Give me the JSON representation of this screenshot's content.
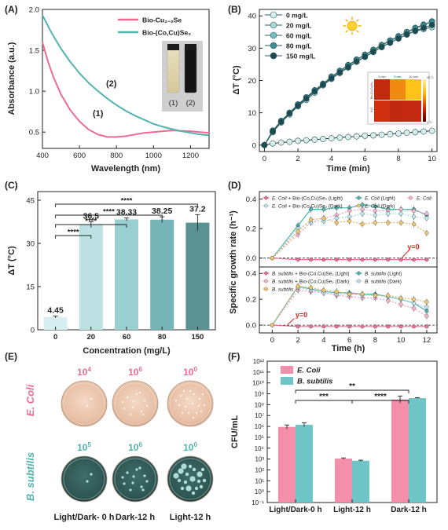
{
  "panel_labels": [
    "(A)",
    "(B)",
    "(C)",
    "(D)",
    "(E)",
    "(F)"
  ],
  "colors": {
    "pink": "#ee6a91",
    "teal": "#4fb3b0",
    "lightpink": "#f6b8cb",
    "lightteal": "#bde3e4",
    "dark": "#1c4a50",
    "F_pink": "#f48fab",
    "F_teal": "#6fc5c5"
  },
  "panel_A": {
    "ylabel": "Absorbance (a.u.)",
    "xlabel": "Wavelength (nm)",
    "xticks": [
      "400",
      "600",
      "800",
      "1000",
      "1200"
    ],
    "yticks": [
      "0.5",
      "1.0",
      "1.5",
      "2.0"
    ],
    "legend": [
      "Bio-Cu₂₋ₓSe",
      "Bio-(Co,Cu)Se₂"
    ],
    "annot": [
      "(1)",
      "(2)"
    ],
    "vial_labels": [
      "(1)",
      "(2)"
    ]
  },
  "panel_B": {
    "ylabel": "ΔT (°C)",
    "xlabel": "Time (min)",
    "xticks": [
      "0",
      "2",
      "4",
      "6",
      "8",
      "10"
    ],
    "yticks": [
      "0",
      "10",
      "20",
      "30",
      "40"
    ],
    "legend": [
      "0 mg/L",
      "20 mg/L",
      "60 mg/L",
      "80 mg/L",
      "150 mg/L"
    ],
    "inset_cols": [
      "0 min",
      "5 min",
      "10 min"
    ],
    "inset_rows": [
      "Bio-(Co,Cu)Se₂",
      "H₂O"
    ],
    "inset_scale": [
      "45 °C",
      "0 °C"
    ]
  },
  "panel_C": {
    "ylabel": "ΔT (°C)",
    "xlabel": "Concentration (mg/L)",
    "yticks": [
      "0",
      "15",
      "30",
      "45"
    ],
    "sig": [
      "****",
      "****",
      "****",
      "****"
    ]
  },
  "panel_D": {
    "ylabel": "Specific growth rate (h⁻¹)",
    "xlabel": "Time (h)",
    "xticks": [
      "0",
      "2",
      "4",
      "6",
      "8",
      "10",
      "12"
    ],
    "yticks_top": [
      "0.0",
      "0.2",
      "0.4"
    ],
    "yticks_bot": [
      "0.0",
      "0.2",
      "0.4"
    ],
    "y0": "y=0",
    "legend_top": [
      [
        "E. Coli",
        " + Bio-(Co,Cu)Se₂ (Light)"
      ],
      [
        "E. Coli",
        " (Light)"
      ],
      [
        "E. Coli",
        ""
      ],
      [
        "E. Coli",
        " + Bio-(Co,Cu)Se₂ (Dark)"
      ],
      [
        "E. Coli",
        " (Dark)"
      ]
    ],
    "legend_bot": [
      [
        "B. subtilis",
        " + Bio-(Co,Cu)Se₂ (Light)"
      ],
      [
        "B. subtilis",
        " (Light)"
      ],
      [
        "B. subtilis",
        " + Bio-(Co,Cu)Se₂ (Dark)"
      ],
      [
        "B. subtilis",
        " (Dark)"
      ],
      [
        "B. subtilis",
        ""
      ]
    ]
  },
  "panel_E": {
    "row_labels": [
      "E. Coli",
      "B. subtilis"
    ],
    "ecoli_dil": [
      "10",
      "10",
      "10"
    ],
    "ecoli_exp": [
      "4",
      "6",
      "0"
    ],
    "bsub_dil": [
      "10",
      "10",
      "10"
    ],
    "bsub_exp": [
      "5",
      "6",
      "0"
    ],
    "col_labels": [
      "Light/Dark- 0 h",
      "Dark-12 h",
      "Light-12 h"
    ]
  },
  "panel_F": {
    "ylabel": "CFU/mL",
    "yticks": [
      "10⁻¹",
      "10⁰",
      "10¹",
      "10²",
      "10³",
      "10⁴",
      "10⁵",
      "10⁶",
      "10⁷",
      "10⁸",
      "10⁹",
      "10¹⁰",
      "10¹¹",
      "10¹²"
    ],
    "categories": [
      "Light/Dark-0 h",
      "Light-12 h",
      "Dark-12 h"
    ],
    "legend": [
      "E. Coli",
      "B. subtilis"
    ],
    "sig": [
      "***",
      "****",
      "**"
    ]
  },
  "chart_data": [
    {
      "panel": "A",
      "type": "line",
      "xlabel": "Wavelength (nm)",
      "ylabel": "Absorbance (a.u.)",
      "xlim": [
        400,
        1300
      ],
      "ylim": [
        0.3,
        2.0
      ],
      "series": [
        {
          "name": "Bio-Cu₂₋ₓSe",
          "x": [
            400,
            430,
            460,
            500,
            550,
            600,
            650,
            700,
            750,
            800,
            850,
            900,
            950,
            1000,
            1050,
            1100,
            1150,
            1200,
            1250,
            1300
          ],
          "y": [
            1.6,
            1.36,
            1.17,
            0.96,
            0.77,
            0.63,
            0.53,
            0.47,
            0.44,
            0.44,
            0.45,
            0.47,
            0.49,
            0.5,
            0.51,
            0.52,
            0.515,
            0.51,
            0.5,
            0.49
          ]
        },
        {
          "name": "Bio-(Co,Cu)Se₂",
          "x": [
            400,
            450,
            500,
            550,
            600,
            650,
            700,
            750,
            800,
            850,
            900,
            950,
            1000,
            1050,
            1100,
            1150,
            1200,
            1250,
            1300
          ],
          "y": [
            1.93,
            1.71,
            1.52,
            1.36,
            1.22,
            1.1,
            1.0,
            0.91,
            0.83,
            0.76,
            0.7,
            0.65,
            0.6,
            0.565,
            0.535,
            0.51,
            0.49,
            0.47,
            0.46
          ]
        }
      ]
    },
    {
      "panel": "B",
      "type": "line",
      "xlabel": "Time (min)",
      "ylabel": "ΔT (°C)",
      "xlim": [
        -0.3,
        10.3
      ],
      "ylim": [
        -2,
        42
      ],
      "x": [
        0,
        0.5,
        1,
        1.5,
        2,
        2.5,
        3,
        3.5,
        4,
        4.5,
        5,
        5.5,
        6,
        6.5,
        7,
        7.5,
        8,
        8.5,
        9,
        9.5,
        10
      ],
      "series": [
        {
          "name": "0 mg/L",
          "y": [
            0,
            0.5,
            0.8,
            1.0,
            1.3,
            1.5,
            1.7,
            1.9,
            2.1,
            2.3,
            2.5,
            2.7,
            2.9,
            3.0,
            3.2,
            3.4,
            3.6,
            3.8,
            4.0,
            4.2,
            4.45
          ]
        },
        {
          "name": "20 mg/L",
          "y": [
            0,
            4,
            7,
            9.5,
            12,
            14,
            16.2,
            18.5,
            20.5,
            22.3,
            24,
            25.8,
            27.3,
            28.8,
            30.3,
            31.7,
            33,
            34.2,
            35.3,
            35.9,
            36.5
          ]
        },
        {
          "name": "60 mg/L",
          "y": [
            0,
            4.5,
            7.5,
            10,
            12.6,
            14.8,
            17,
            19,
            21.2,
            23,
            24.8,
            26.5,
            28,
            29.5,
            31,
            32.4,
            33.7,
            35,
            36.3,
            37.3,
            38.3
          ]
        },
        {
          "name": "80 mg/L",
          "y": [
            0,
            4.4,
            7.4,
            10,
            12.5,
            14.7,
            16.9,
            19,
            21.1,
            22.9,
            24.7,
            26.4,
            27.9,
            29.4,
            30.9,
            32.3,
            33.6,
            34.9,
            36.1,
            37.2,
            38.2
          ]
        },
        {
          "name": "150 mg/L",
          "y": [
            0,
            4.2,
            7.2,
            9.8,
            12.2,
            14.4,
            16.6,
            18.7,
            20.7,
            22.5,
            24.2,
            25.9,
            27.4,
            28.9,
            30.4,
            31.7,
            33,
            34.3,
            35.4,
            36.3,
            37.2
          ]
        }
      ]
    },
    {
      "panel": "C",
      "type": "bar",
      "xlabel": "Concentration (mg/L)",
      "ylabel": "ΔT (°C)",
      "categories": [
        "0",
        "20",
        "60",
        "80",
        "150"
      ],
      "values": [
        4.45,
        36.5,
        38.33,
        38.25,
        37.2
      ],
      "value_labels": [
        "4.45",
        "36.5",
        "38.33",
        "38.25",
        "37.2"
      ],
      "errors": [
        0.3,
        1.0,
        0.5,
        1.0,
        2.8
      ],
      "ylim": [
        0,
        48
      ]
    },
    {
      "panel": "D-top",
      "type": "line",
      "xlabel": "Time (h)",
      "ylabel": "Specific growth rate (h⁻¹)",
      "xlim": [
        -1,
        12.8
      ],
      "ylim": [
        -0.06,
        0.45
      ],
      "x": [
        0,
        2,
        3,
        4,
        5,
        6,
        7,
        8,
        9,
        10,
        11,
        12
      ],
      "series": [
        {
          "name": "E. Coli + Bio-(Co,Cu)Se₂ (Light)",
          "y": [
            0,
            -0.01,
            -0.01,
            -0.01,
            -0.01,
            -0.01,
            -0.01,
            -0.01,
            -0.01,
            -0.01,
            -0.01,
            -0.01
          ]
        },
        {
          "name": "E. Coli (Light)",
          "y": [
            0,
            0.22,
            0.33,
            0.33,
            0.34,
            0.34,
            0.36,
            0.35,
            0.33,
            0.33,
            0.33,
            0.29
          ]
        },
        {
          "name": "E. Coli",
          "y": [
            0,
            0.16,
            0.24,
            0.27,
            0.29,
            0.32,
            0.33,
            0.32,
            0.32,
            0.33,
            0.32,
            0.3
          ]
        },
        {
          "name": "E. Coli + Bio-(Co,Cu)Se₂ (Dark)",
          "y": [
            0,
            0.2,
            0.24,
            0.25,
            0.27,
            0.28,
            0.3,
            0.29,
            0.3,
            0.3,
            0.28,
            0.27
          ]
        },
        {
          "name": "E. Coli (Dark)",
          "y": [
            0,
            0.18,
            0.26,
            0.27,
            0.24,
            0.25,
            0.23,
            0.24,
            0.24,
            0.24,
            0.23,
            0.17
          ]
        }
      ]
    },
    {
      "panel": "D-bottom",
      "type": "line",
      "xlabel": "Time (h)",
      "ylabel": "Specific growth rate (h⁻¹)",
      "xlim": [
        -1,
        12.8
      ],
      "ylim": [
        -0.06,
        0.45
      ],
      "x": [
        0,
        2,
        3,
        4,
        5,
        6,
        7,
        8,
        9,
        10,
        11,
        12
      ],
      "series": [
        {
          "name": "B. subtilis + Bio-(Co,Cu)Se₂ (Light)",
          "y": [
            0,
            -0.01,
            -0.01,
            -0.01,
            -0.01,
            -0.01,
            -0.01,
            -0.01,
            -0.01,
            -0.01,
            -0.01,
            -0.01
          ]
        },
        {
          "name": "B. subtilis (Light)",
          "y": [
            0,
            0.3,
            0.28,
            0.26,
            0.25,
            0.25,
            0.24,
            0.24,
            0.22,
            0.2,
            0.17,
            0.11
          ]
        },
        {
          "name": "B. subtilis + Bio-(Co,Cu)Se₂ (Dark)",
          "y": [
            0,
            0.27,
            0.26,
            0.25,
            0.23,
            0.22,
            0.21,
            0.21,
            0.19,
            0.16,
            0.13,
            0.07
          ]
        },
        {
          "name": "B. subtilis (Dark)",
          "y": [
            0,
            0.29,
            0.27,
            0.25,
            0.24,
            0.24,
            0.23,
            0.23,
            0.22,
            0.2,
            0.17,
            0.14
          ]
        },
        {
          "name": "B. subtilis",
          "y": [
            0,
            0.3,
            0.29,
            0.27,
            0.26,
            0.24,
            0.24,
            0.23,
            0.23,
            0.21,
            0.2,
            0.18
          ]
        }
      ]
    },
    {
      "panel": "F",
      "type": "bar",
      "ylabel": "CFU/mL",
      "y_scale": "log",
      "ylim": [
        0.1,
        1000000000000.0
      ],
      "categories": [
        "Light/Dark-0 h",
        "Light-12 h",
        "Dark-12 h"
      ],
      "series": [
        {
          "name": "E. Coli",
          "values": [
            900000,
            1100,
            300000000
          ],
          "errors_log": [
            0.18,
            0.06,
            0.32
          ]
        },
        {
          "name": "B. subtilis",
          "values": [
            1400000,
            700,
            400000000
          ],
          "errors_log": [
            0.18,
            0.05,
            0.04
          ]
        }
      ]
    }
  ]
}
